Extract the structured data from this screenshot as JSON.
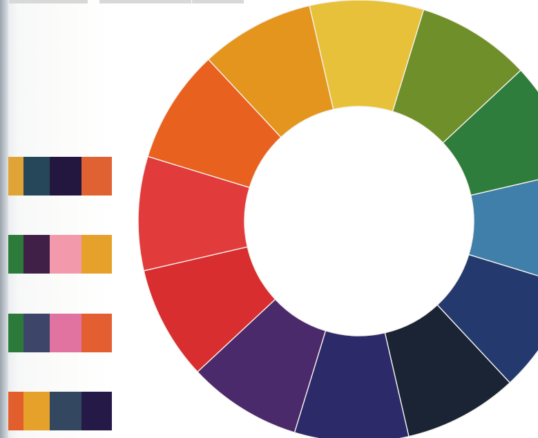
{
  "page": {
    "description_free": true
  },
  "color_wheel": {
    "segments": [
      {
        "name": "yellow",
        "color": "#e8c13a"
      },
      {
        "name": "yellow-green",
        "color": "#6f8f2a"
      },
      {
        "name": "green",
        "color": "#2f7d3d"
      },
      {
        "name": "blue",
        "color": "#3f7fa9"
      },
      {
        "name": "blue-violet",
        "color": "#243a6f"
      },
      {
        "name": "navy-black",
        "color": "#1b2435"
      },
      {
        "name": "indigo",
        "color": "#2d2a6a"
      },
      {
        "name": "violet",
        "color": "#4b2a6c"
      },
      {
        "name": "red",
        "color": "#d92e2f"
      },
      {
        "name": "red-orange",
        "color": "#e23b3b"
      },
      {
        "name": "orange",
        "color": "#e9611f"
      },
      {
        "name": "yellow-orange",
        "color": "#e4951d"
      }
    ]
  },
  "swatch_rows": [
    {
      "name": "palette-row-1",
      "colors": [
        "#e0a436",
        "#26475a",
        "#23173f",
        "#e06232"
      ]
    },
    {
      "name": "palette-row-2",
      "colors": [
        "#2d7b3a",
        "#402047",
        "#f29aac",
        "#e6a12a"
      ]
    },
    {
      "name": "palette-row-3",
      "colors": [
        "#2b7a3a",
        "#3d4668",
        "#e173a0",
        "#e35f32"
      ]
    },
    {
      "name": "palette-row-4",
      "colors": [
        "#e25e2c",
        "#e6a12b",
        "#344761",
        "#241947"
      ]
    }
  ]
}
